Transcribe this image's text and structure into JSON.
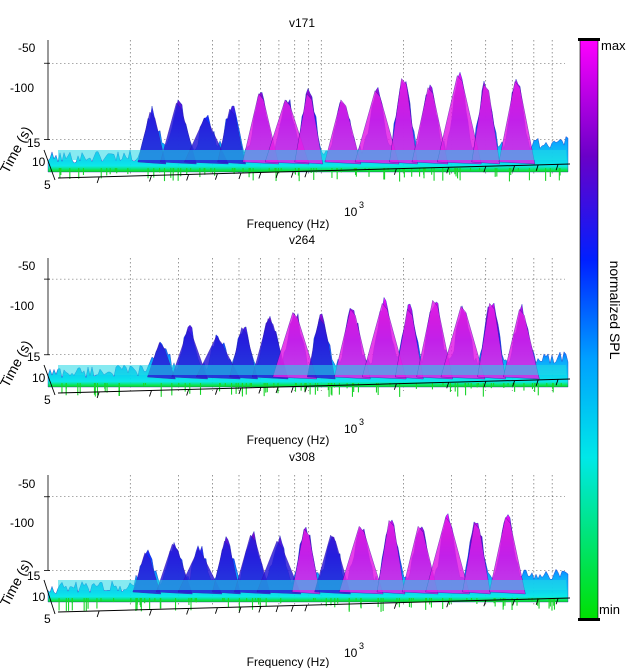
{
  "figure": {
    "colorbar": {
      "label": "normalized SPL",
      "max_label": "max",
      "min_label": "min",
      "colors": [
        "#00e000",
        "#00e8e8",
        "#00a0ff",
        "#0020ff",
        "#6a00c8",
        "#ff00ff"
      ]
    }
  },
  "chart_data": [
    {
      "type": "area",
      "title": "v171",
      "xlabel": "Frequency (Hz)",
      "ylabel": "Time (s)",
      "zlabel": "normalized SPL",
      "x_scale": "log",
      "x_tick_label": "10",
      "x_tick_exponent": "3",
      "y_tick_labels": [
        "5",
        "10",
        "15"
      ],
      "z_tick_labels": [
        "-50",
        "-100"
      ],
      "z_range": [
        -120,
        -40
      ],
      "grid": true,
      "peaks": [
        {
          "f": 240,
          "level": -82
        },
        {
          "f": 300,
          "level": -76
        },
        {
          "f": 380,
          "level": -86
        },
        {
          "f": 470,
          "level": -80
        },
        {
          "f": 600,
          "level": -70
        },
        {
          "f": 750,
          "level": -74
        },
        {
          "f": 900,
          "level": -70
        },
        {
          "f": 1200,
          "level": -74
        },
        {
          "f": 1600,
          "level": -68
        },
        {
          "f": 2000,
          "level": -60
        },
        {
          "f": 2500,
          "level": -66
        },
        {
          "f": 3200,
          "level": -58
        },
        {
          "f": 4000,
          "level": -64
        },
        {
          "f": 5200,
          "level": -62
        }
      ]
    },
    {
      "type": "area",
      "title": "v264",
      "xlabel": "Frequency (Hz)",
      "ylabel": "Time (s)",
      "zlabel": "normalized SPL",
      "x_scale": "log",
      "x_tick_label": "10",
      "x_tick_exponent": "3",
      "y_tick_labels": [
        "5",
        "10",
        "15"
      ],
      "z_tick_labels": [
        "-50",
        "-100"
      ],
      "z_range": [
        -120,
        -40
      ],
      "grid": true,
      "peaks": [
        {
          "f": 260,
          "level": -92
        },
        {
          "f": 330,
          "level": -84
        },
        {
          "f": 420,
          "level": -88
        },
        {
          "f": 520,
          "level": -82
        },
        {
          "f": 650,
          "level": -76
        },
        {
          "f": 800,
          "level": -72
        },
        {
          "f": 1000,
          "level": -76
        },
        {
          "f": 1300,
          "level": -70
        },
        {
          "f": 1700,
          "level": -66
        },
        {
          "f": 2100,
          "level": -70
        },
        {
          "f": 2600,
          "level": -64
        },
        {
          "f": 3300,
          "level": -68
        },
        {
          "f": 4200,
          "level": -66
        },
        {
          "f": 5400,
          "level": -70
        }
      ]
    },
    {
      "type": "area",
      "title": "v308",
      "xlabel": "Frequency (Hz)",
      "ylabel": "Time (s)",
      "zlabel": "normalized SPL",
      "x_scale": "log",
      "x_tick_label": "10",
      "x_tick_exponent": "3",
      "y_tick_labels": [
        "5",
        "10",
        "15"
      ],
      "z_tick_labels": [
        "-50",
        "-100"
      ],
      "z_range": [
        -120,
        -40
      ],
      "grid": true,
      "peaks": [
        {
          "f": 230,
          "level": -88
        },
        {
          "f": 290,
          "level": -82
        },
        {
          "f": 360,
          "level": -86
        },
        {
          "f": 450,
          "level": -80
        },
        {
          "f": 560,
          "level": -76
        },
        {
          "f": 700,
          "level": -80
        },
        {
          "f": 880,
          "level": -72
        },
        {
          "f": 1100,
          "level": -76
        },
        {
          "f": 1400,
          "level": -70
        },
        {
          "f": 1800,
          "level": -66
        },
        {
          "f": 2300,
          "level": -70
        },
        {
          "f": 2900,
          "level": -64
        },
        {
          "f": 3700,
          "level": -68
        },
        {
          "f": 4800,
          "level": -64
        }
      ]
    }
  ]
}
